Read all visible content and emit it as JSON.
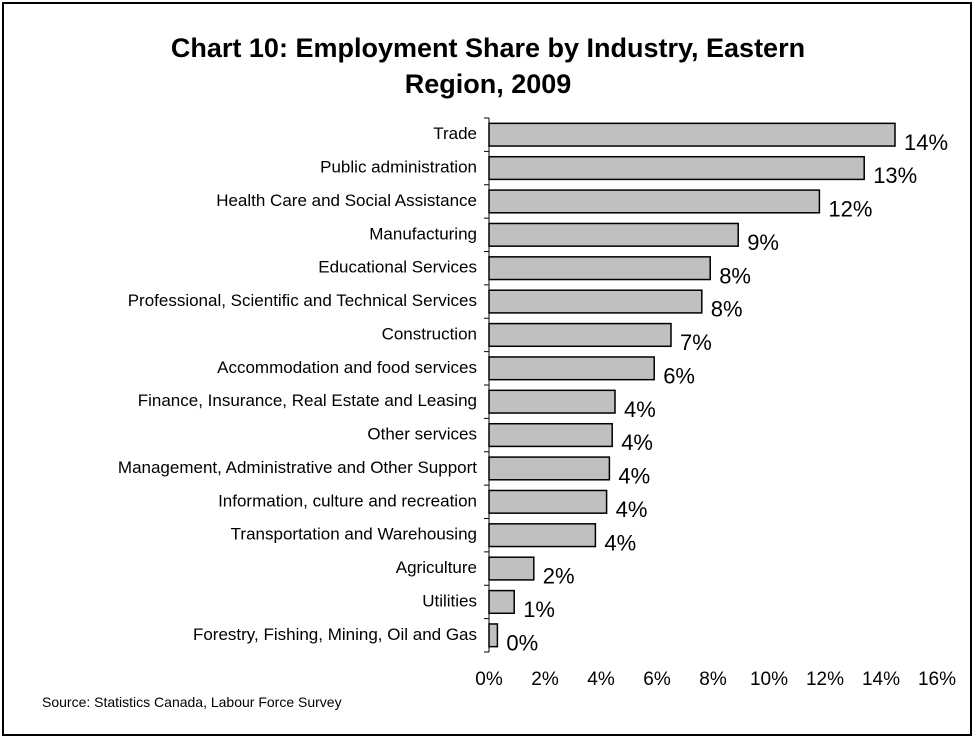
{
  "chart_data": {
    "type": "bar",
    "orientation": "horizontal",
    "title_line1": "Chart 10: Employment Share by Industry, Eastern",
    "title_line2": "Region, 2009",
    "xlabel": "",
    "ylabel": "",
    "xlim": [
      0,
      16
    ],
    "x_ticks": [
      "0%",
      "2%",
      "4%",
      "6%",
      "8%",
      "10%",
      "12%",
      "14%",
      "16%"
    ],
    "grid": false,
    "legend": "none",
    "bar_color": "#c0c0c0",
    "categories": [
      "Trade",
      "Public administration",
      "Health Care and Social Assistance",
      "Manufacturing",
      "Educational Services",
      "Professional, Scientific and Technical Services",
      "Construction",
      "Accommodation and food services",
      "Finance, Insurance, Real Estate and Leasing",
      "Other services",
      "Management, Administrative and Other Support",
      "Information, culture and recreation",
      "Transportation and Warehousing",
      "Agriculture",
      "Utilities",
      "Forestry, Fishing, Mining, Oil and Gas"
    ],
    "values": [
      14.5,
      13.4,
      11.8,
      8.9,
      7.9,
      7.6,
      6.5,
      5.9,
      4.5,
      4.4,
      4.3,
      4.2,
      3.8,
      1.6,
      0.9,
      0.3
    ],
    "data_labels": [
      "14%",
      "13%",
      "12%",
      "9%",
      "8%",
      "8%",
      "7%",
      "6%",
      "4%",
      "4%",
      "4%",
      "4%",
      "4%",
      "2%",
      "1%",
      "0%"
    ],
    "source": "Source: Statistics Canada, Labour Force Survey"
  }
}
